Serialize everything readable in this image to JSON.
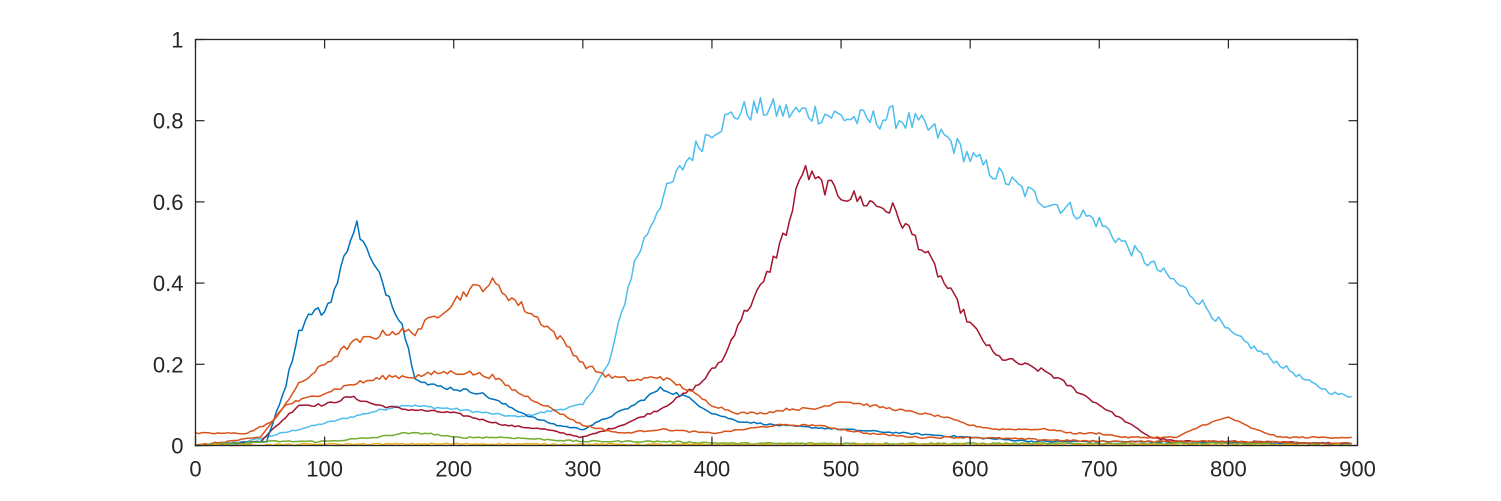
{
  "chart_data": {
    "type": "line",
    "title": "",
    "xlabel": "",
    "ylabel": "",
    "xlim": [
      0,
      900
    ],
    "ylim": [
      0,
      1
    ],
    "grid": false,
    "legend": "none",
    "x_ticks": [
      0,
      100,
      200,
      300,
      400,
      500,
      600,
      700,
      800,
      900
    ],
    "x_tick_labels": [
      "0",
      "100",
      "200",
      "300",
      "400",
      "500",
      "600",
      "700",
      "800",
      "900"
    ],
    "y_ticks": [
      0,
      0.2,
      0.4,
      0.6,
      0.8,
      1
    ],
    "y_tick_labels": [
      "0",
      "0.2",
      "0.4",
      "0.6",
      "0.8",
      "1"
    ],
    "series": [
      {
        "color": "#4DBEEE",
        "points": [
          [
            0,
            0
          ],
          [
            40,
            0.01
          ],
          [
            80,
            0.04
          ],
          [
            120,
            0.07
          ],
          [
            160,
            0.1
          ],
          [
            200,
            0.09
          ],
          [
            250,
            0.07
          ],
          [
            300,
            0.1
          ],
          [
            320,
            0.2
          ],
          [
            340,
            0.45
          ],
          [
            360,
            0.6
          ],
          [
            380,
            0.7
          ],
          [
            400,
            0.78
          ],
          [
            420,
            0.82
          ],
          [
            440,
            0.83
          ],
          [
            460,
            0.82
          ],
          [
            480,
            0.82
          ],
          [
            500,
            0.81
          ],
          [
            520,
            0.8
          ],
          [
            540,
            0.81
          ],
          [
            560,
            0.79
          ],
          [
            580,
            0.76
          ],
          [
            600,
            0.71
          ],
          [
            620,
            0.67
          ],
          [
            640,
            0.63
          ],
          [
            660,
            0.6
          ],
          [
            680,
            0.58
          ],
          [
            700,
            0.55
          ],
          [
            710,
            0.52
          ],
          [
            730,
            0.47
          ],
          [
            760,
            0.4
          ],
          [
            780,
            0.35
          ],
          [
            800,
            0.28
          ],
          [
            820,
            0.24
          ],
          [
            840,
            0.2
          ],
          [
            860,
            0.16
          ],
          [
            880,
            0.13
          ],
          [
            895,
            0.12
          ]
        ]
      },
      {
        "color": "#A2142F",
        "points": [
          [
            0,
            0
          ],
          [
            50,
            0.01
          ],
          [
            80,
            0.1
          ],
          [
            100,
            0.1
          ],
          [
            120,
            0.12
          ],
          [
            140,
            0.1
          ],
          [
            160,
            0.09
          ],
          [
            200,
            0.08
          ],
          [
            240,
            0.05
          ],
          [
            270,
            0.04
          ],
          [
            300,
            0.02
          ],
          [
            330,
            0.05
          ],
          [
            360,
            0.09
          ],
          [
            390,
            0.15
          ],
          [
            410,
            0.22
          ],
          [
            420,
            0.3
          ],
          [
            440,
            0.4
          ],
          [
            460,
            0.55
          ],
          [
            470,
            0.68
          ],
          [
            480,
            0.65
          ],
          [
            500,
            0.62
          ],
          [
            520,
            0.6
          ],
          [
            540,
            0.58
          ],
          [
            560,
            0.5
          ],
          [
            580,
            0.4
          ],
          [
            600,
            0.3
          ],
          [
            620,
            0.22
          ],
          [
            640,
            0.2
          ],
          [
            660,
            0.18
          ],
          [
            680,
            0.14
          ],
          [
            700,
            0.1
          ],
          [
            720,
            0.06
          ],
          [
            740,
            0.02
          ],
          [
            760,
            0.01
          ],
          [
            800,
            0.01
          ],
          [
            895,
            0.005
          ]
        ]
      },
      {
        "color": "#0072BD",
        "points": [
          [
            0,
            0
          ],
          [
            55,
            0.01
          ],
          [
            70,
            0.15
          ],
          [
            80,
            0.28
          ],
          [
            90,
            0.33
          ],
          [
            100,
            0.33
          ],
          [
            110,
            0.4
          ],
          [
            120,
            0.52
          ],
          [
            125,
            0.54
          ],
          [
            135,
            0.46
          ],
          [
            145,
            0.4
          ],
          [
            160,
            0.3
          ],
          [
            170,
            0.17
          ],
          [
            180,
            0.15
          ],
          [
            200,
            0.14
          ],
          [
            220,
            0.13
          ],
          [
            240,
            0.1
          ],
          [
            260,
            0.07
          ],
          [
            280,
            0.05
          ],
          [
            300,
            0.04
          ],
          [
            320,
            0.07
          ],
          [
            340,
            0.1
          ],
          [
            360,
            0.14
          ],
          [
            380,
            0.12
          ],
          [
            400,
            0.08
          ],
          [
            420,
            0.06
          ],
          [
            450,
            0.05
          ],
          [
            500,
            0.04
          ],
          [
            550,
            0.03
          ],
          [
            600,
            0.02
          ],
          [
            650,
            0.01
          ],
          [
            700,
            0.01
          ],
          [
            895,
            0.005
          ]
        ]
      },
      {
        "color": "#D95319",
        "points": [
          [
            0,
            0.03
          ],
          [
            40,
            0.03
          ],
          [
            60,
            0.06
          ],
          [
            80,
            0.15
          ],
          [
            100,
            0.2
          ],
          [
            120,
            0.25
          ],
          [
            150,
            0.28
          ],
          [
            170,
            0.28
          ],
          [
            190,
            0.33
          ],
          [
            210,
            0.38
          ],
          [
            230,
            0.4
          ],
          [
            250,
            0.35
          ],
          [
            270,
            0.3
          ],
          [
            290,
            0.24
          ],
          [
            300,
            0.2
          ],
          [
            320,
            0.17
          ],
          [
            340,
            0.16
          ],
          [
            360,
            0.17
          ],
          [
            380,
            0.14
          ],
          [
            400,
            0.1
          ],
          [
            420,
            0.08
          ],
          [
            440,
            0.08
          ],
          [
            460,
            0.09
          ],
          [
            480,
            0.09
          ],
          [
            500,
            0.11
          ],
          [
            520,
            0.1
          ],
          [
            540,
            0.09
          ],
          [
            560,
            0.08
          ],
          [
            580,
            0.07
          ],
          [
            600,
            0.05
          ],
          [
            620,
            0.04
          ],
          [
            640,
            0.04
          ],
          [
            660,
            0.04
          ],
          [
            680,
            0.03
          ],
          [
            700,
            0.03
          ],
          [
            720,
            0.02
          ],
          [
            740,
            0.02
          ],
          [
            760,
            0.02
          ],
          [
            780,
            0.05
          ],
          [
            800,
            0.07
          ],
          [
            820,
            0.04
          ],
          [
            840,
            0.02
          ],
          [
            860,
            0.02
          ],
          [
            895,
            0.02
          ]
        ]
      },
      {
        "color": "#D95319",
        "points": [
          [
            0,
            0
          ],
          [
            50,
            0.02
          ],
          [
            70,
            0.1
          ],
          [
            100,
            0.13
          ],
          [
            120,
            0.15
          ],
          [
            150,
            0.17
          ],
          [
            170,
            0.17
          ],
          [
            190,
            0.18
          ],
          [
            210,
            0.18
          ],
          [
            230,
            0.17
          ],
          [
            250,
            0.13
          ],
          [
            270,
            0.1
          ],
          [
            300,
            0.05
          ],
          [
            330,
            0.03
          ],
          [
            360,
            0.04
          ],
          [
            400,
            0.03
          ],
          [
            450,
            0.05
          ],
          [
            480,
            0.05
          ],
          [
            520,
            0.03
          ],
          [
            560,
            0.02
          ],
          [
            600,
            0.02
          ],
          [
            700,
            0.01
          ],
          [
            800,
            0.01
          ],
          [
            895,
            0.005
          ]
        ]
      },
      {
        "color": "#77AC30",
        "points": [
          [
            0,
            0
          ],
          [
            60,
            0.01
          ],
          [
            100,
            0.01
          ],
          [
            140,
            0.02
          ],
          [
            160,
            0.03
          ],
          [
            180,
            0.03
          ],
          [
            200,
            0.02
          ],
          [
            240,
            0.02
          ],
          [
            300,
            0.01
          ],
          [
            360,
            0.01
          ],
          [
            420,
            0.005
          ],
          [
            500,
            0.005
          ],
          [
            600,
            0.005
          ],
          [
            700,
            0.005
          ],
          [
            800,
            0.005
          ],
          [
            895,
            0
          ]
        ]
      },
      {
        "color": "#EDB120",
        "points": [
          [
            0,
            0
          ],
          [
            100,
            0.003
          ],
          [
            200,
            0.004
          ],
          [
            300,
            0.003
          ],
          [
            400,
            0.002
          ],
          [
            500,
            0.002
          ],
          [
            600,
            0.002
          ],
          [
            700,
            0.001
          ],
          [
            800,
            0.001
          ],
          [
            895,
            0.001
          ]
        ]
      }
    ]
  }
}
